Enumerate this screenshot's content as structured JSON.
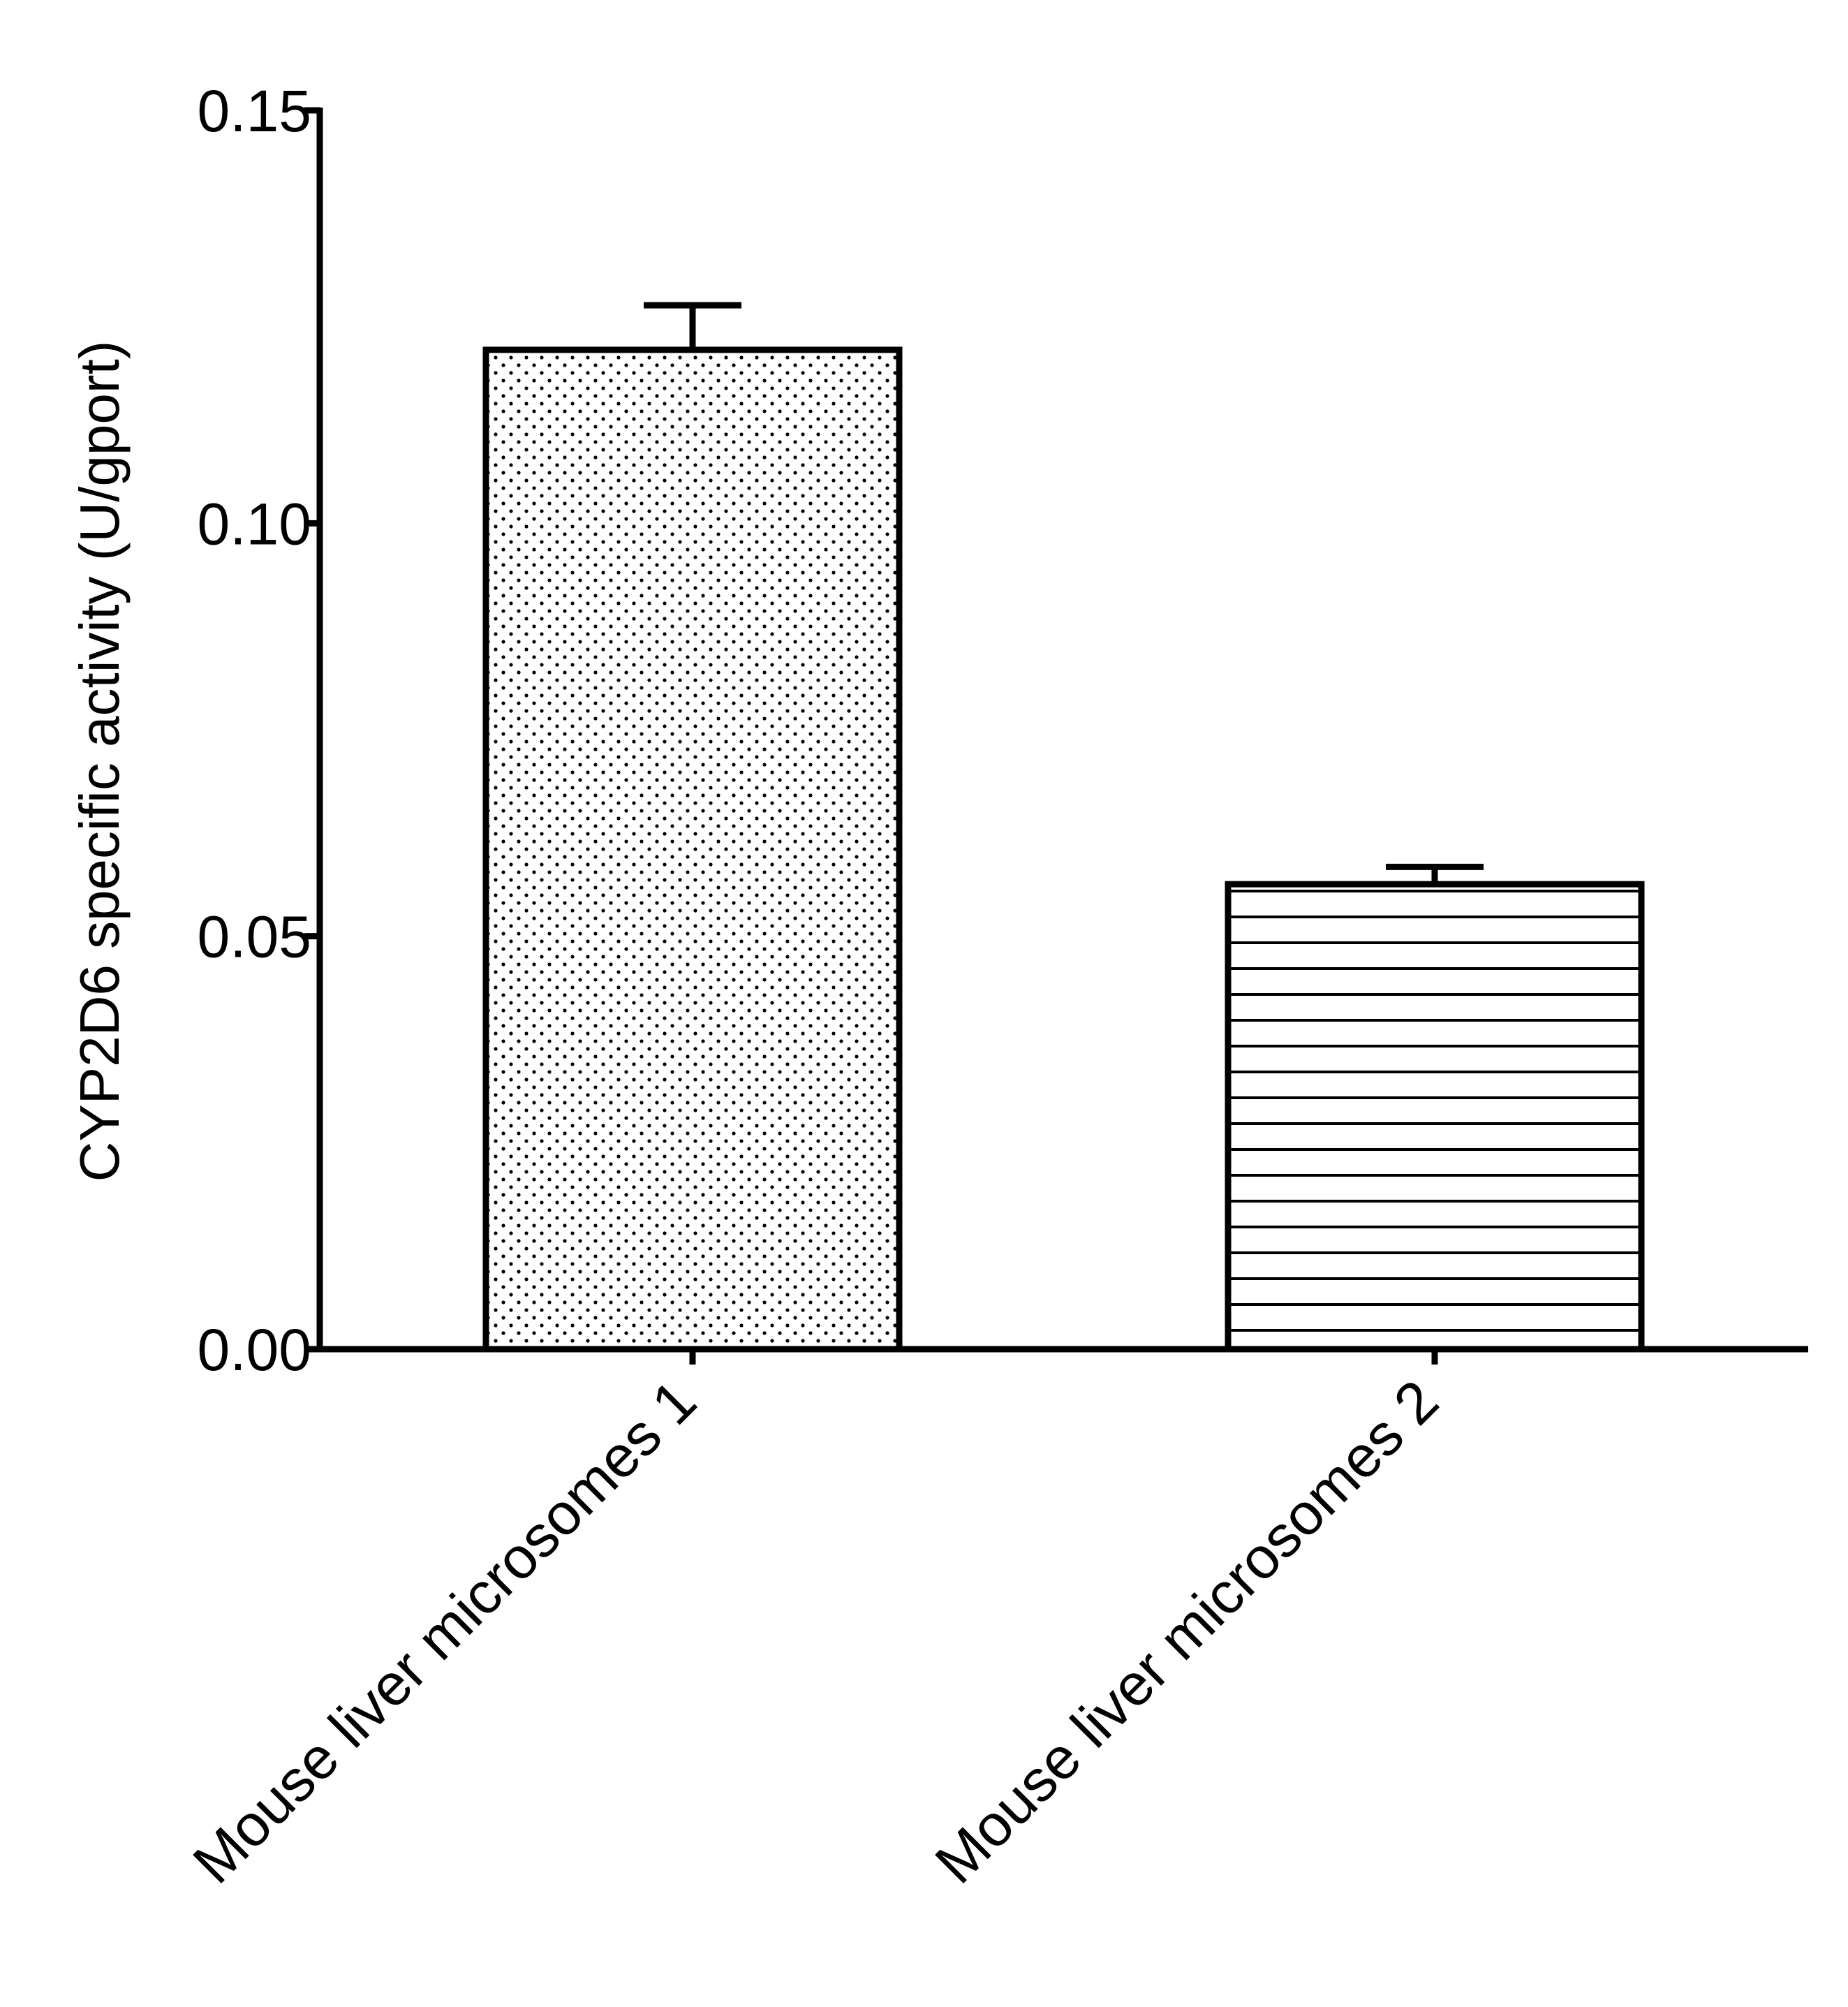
{
  "chart_data": {
    "type": "bar",
    "title": "",
    "xlabel": "",
    "ylabel": "CYP2D6 specific activity (U/gport)",
    "categories": [
      "Mouse liver microsomes 1",
      "Mouse liver microsomes 2"
    ],
    "values": [
      0.121,
      0.0563
    ],
    "error_upper": [
      0.0054,
      0.0021
    ],
    "fill_patterns": [
      "dots",
      "horizontal-lines"
    ],
    "ylim": [
      0,
      0.15
    ],
    "yticks": [
      0.0,
      0.05,
      0.1,
      0.15
    ],
    "ytick_labels": [
      "0.00",
      "0.05",
      "0.10",
      "0.15"
    ],
    "grid": false,
    "legend": "none",
    "colors": {
      "ink": "#000000",
      "background": "#ffffff"
    }
  }
}
